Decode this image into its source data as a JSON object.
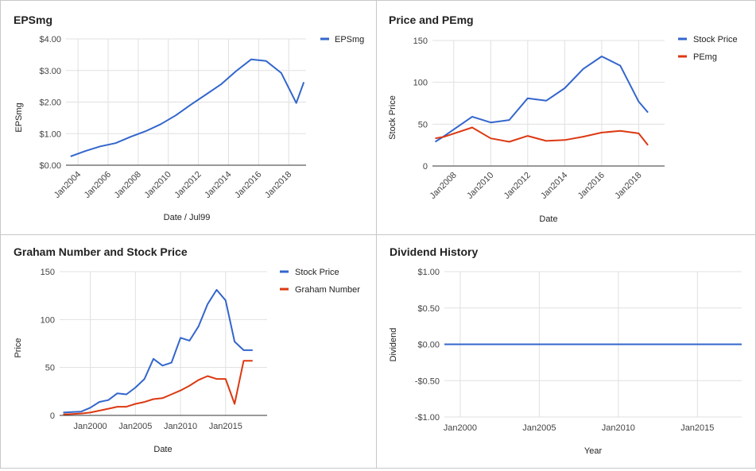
{
  "colors": {
    "blue": "#3366cc",
    "red": "#dc3912",
    "grid": "#e0e0e0",
    "axis": "#333333"
  },
  "chart_data": [
    {
      "id": "epsmg",
      "type": "line",
      "title": "EPSmg",
      "xlabel": "Date / Jul99",
      "ylabel": "EPSmg",
      "xlim": [
        2003.2,
        2019.15
      ],
      "ylim": [
        0,
        4
      ],
      "yticks": [
        0,
        1,
        2,
        3,
        4
      ],
      "ytick_labels": [
        "$0.00",
        "$1.00",
        "$2.00",
        "$3.00",
        "$4.00"
      ],
      "xticks": [
        2004,
        2006,
        2008,
        2010,
        2012,
        2014,
        2016,
        2018
      ],
      "xtick_labels": [
        "Jan2004",
        "Jan2006",
        "Jan2008",
        "Jan2010",
        "Jan2012",
        "Jan2014",
        "Jan2016",
        "Jan2018"
      ],
      "xtick_rotate": true,
      "legend_position": "top-right",
      "series": [
        {
          "name": "EPSmg",
          "color": "#3366cc",
          "x": [
            2003.5,
            2004.5,
            2005.5,
            2006.5,
            2007.5,
            2008.5,
            2009.5,
            2010.5,
            2011.5,
            2012.5,
            2013.5,
            2014.5,
            2015.5,
            2016.5,
            2017.5,
            2018.5,
            2019.0
          ],
          "y": [
            0.28,
            0.45,
            0.6,
            0.7,
            0.9,
            1.08,
            1.3,
            1.58,
            1.92,
            2.24,
            2.56,
            2.98,
            3.35,
            3.3,
            2.92,
            1.97,
            2.63
          ]
        }
      ]
    },
    {
      "id": "price-pemg",
      "type": "line",
      "title": "Price and PEmg",
      "xlabel": "Date",
      "ylabel": "Stock Price",
      "xlim": [
        2006.85,
        2019.4
      ],
      "ylim": [
        0,
        150
      ],
      "yticks": [
        0,
        50,
        100,
        150
      ],
      "ytick_labels": [
        "0",
        "50",
        "100",
        "150"
      ],
      "xticks": [
        2008,
        2010,
        2012,
        2014,
        2016,
        2018
      ],
      "xtick_labels": [
        "Jan2008",
        "Jan2010",
        "Jan2012",
        "Jan2014",
        "Jan2016",
        "Jan2018"
      ],
      "xtick_rotate": true,
      "legend_position": "top-right",
      "series": [
        {
          "name": "Stock Price",
          "color": "#3366cc",
          "x": [
            2007.0,
            2007.5,
            2009.0,
            2010.0,
            2011.0,
            2012.0,
            2013.0,
            2014.0,
            2015.0,
            2016.0,
            2017.0,
            2018.0,
            2018.5
          ],
          "y": [
            29,
            36,
            59,
            52,
            55,
            81,
            78,
            93,
            116,
            131,
            120,
            77,
            64
          ]
        },
        {
          "name": "PEmg",
          "color": "#dc3912",
          "x": [
            2007.0,
            2007.5,
            2009.0,
            2010.0,
            2011.0,
            2012.0,
            2013.0,
            2014.0,
            2015.0,
            2016.0,
            2017.0,
            2018.0,
            2018.5
          ],
          "y": [
            33,
            35,
            46,
            33,
            29,
            36,
            30,
            31,
            35,
            40,
            42,
            39,
            25
          ]
        }
      ]
    },
    {
      "id": "graham",
      "type": "line",
      "title": "Graham Number and Stock Price",
      "xlabel": "Date",
      "ylabel": "Price",
      "xlim": [
        1996.6,
        2019.6
      ],
      "ylim": [
        0,
        150
      ],
      "yticks": [
        0,
        50,
        100,
        150
      ],
      "ytick_labels": [
        "0",
        "50",
        "100",
        "150"
      ],
      "xticks": [
        2000,
        2005,
        2010,
        2015
      ],
      "xtick_labels": [
        "Jan2000",
        "Jan2005",
        "Jan2010",
        "Jan2015"
      ],
      "xtick_rotate": false,
      "legend_position": "top-right",
      "series": [
        {
          "name": "Stock Price",
          "color": "#3366cc",
          "x": [
            1997,
            1998,
            1999,
            2000,
            2001,
            2002,
            2003,
            2004,
            2005,
            2006,
            2007,
            2008,
            2009,
            2010,
            2011,
            2012,
            2013,
            2014,
            2015,
            2016,
            2017,
            2018
          ],
          "y": [
            3,
            3.5,
            4,
            8,
            14,
            16,
            23,
            22,
            29,
            38,
            59,
            52,
            55,
            81,
            78,
            93,
            116,
            131,
            120,
            77,
            68,
            68
          ]
        },
        {
          "name": "Graham Number",
          "color": "#dc3912",
          "x": [
            1997,
            1998,
            1999,
            2000,
            2001,
            2002,
            2003,
            2004,
            2005,
            2006,
            2007,
            2008,
            2009,
            2010,
            2011,
            2012,
            2013,
            2014,
            2015,
            2016,
            2017,
            2018
          ],
          "y": [
            1,
            1.5,
            2,
            3,
            5,
            7,
            9,
            9,
            12,
            14,
            17,
            18,
            22,
            26,
            31,
            37,
            41,
            38,
            38,
            12,
            57,
            57
          ]
        }
      ]
    },
    {
      "id": "dividend",
      "type": "line",
      "title": "Dividend History",
      "xlabel": "Year",
      "ylabel": "Dividend",
      "xlim": [
        1999.0,
        2017.8
      ],
      "ylim": [
        -1,
        1
      ],
      "yticks": [
        -1,
        -0.5,
        0,
        0.5,
        1
      ],
      "ytick_labels": [
        "-$1.00",
        "-$0.50",
        "$0.00",
        "$0.50",
        "$1.00"
      ],
      "xticks": [
        2000,
        2005,
        2010,
        2015
      ],
      "xtick_labels": [
        "Jan2000",
        "Jan2005",
        "Jan2010",
        "Jan2015"
      ],
      "xtick_rotate": false,
      "legend_position": "none",
      "series": [
        {
          "name": "",
          "color": "#3366cc",
          "x": [
            1999.0,
            2017.8
          ],
          "y": [
            0,
            0
          ]
        }
      ]
    }
  ]
}
